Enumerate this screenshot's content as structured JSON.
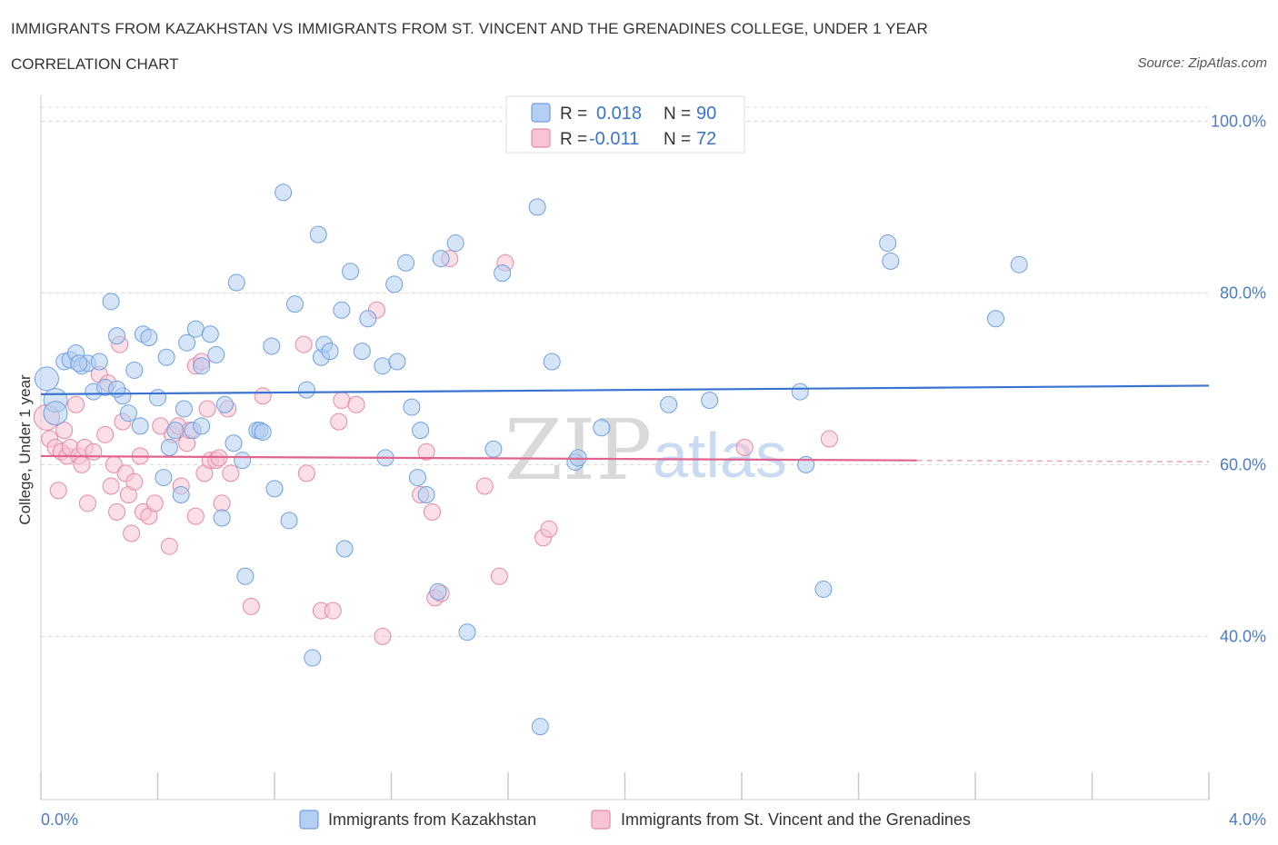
{
  "header": {
    "title_line1": "IMMIGRANTS FROM KAZAKHSTAN VS IMMIGRANTS FROM ST. VINCENT AND THE GRENADINES COLLEGE, UNDER 1 YEAR",
    "title_line2": "CORRELATION CHART",
    "source": "Source: ZipAtlas.com"
  },
  "watermark": {
    "zip": "ZIP",
    "atlas": "atlas"
  },
  "colors": {
    "blue": "#6fa0e0",
    "blue_fill": "#b5cef3",
    "blue_line": "#3a74d0",
    "pink": "#e888a6",
    "pink_fill": "#f6c4d4",
    "pink_line": "#e0648c",
    "axis_text": "#4a7cc9",
    "grid": "#d8d8d8"
  },
  "legend": {
    "rows": [
      {
        "r_label": "R =",
        "r_value": "0.018",
        "n_label": "N =",
        "n_value": "90"
      },
      {
        "r_label": "R =",
        "r_value": "-0.011",
        "n_label": "N =",
        "n_value": "72"
      }
    ]
  },
  "bottom_legend": {
    "items": [
      "Immigrants from Kazakhstan",
      "Immigrants from St. Vincent and the Grenadines"
    ]
  },
  "chart_data": {
    "type": "scatter",
    "xlabel": "",
    "ylabel": "College, Under 1 year",
    "xlim": [
      0,
      4
    ],
    "ylim": [
      21,
      103
    ],
    "x_tick_labels": [
      "0.0%",
      "4.0%"
    ],
    "y_ticks": [
      40,
      60,
      80,
      100
    ],
    "y_tick_labels": [
      "40.0%",
      "60.0%",
      "80.0%",
      "100.0%"
    ],
    "grid": true,
    "legend_position": "top-center",
    "series": [
      {
        "name": "Immigrants from Kazakhstan",
        "trend": {
          "x0": 0,
          "y0": 68.2,
          "x1": 4,
          "y1": 69.2
        },
        "points": [
          [
            0.02,
            70.0
          ],
          [
            0.05,
            67.5
          ],
          [
            0.05,
            66.0
          ],
          [
            0.08,
            72.0
          ],
          [
            0.1,
            72.2
          ],
          [
            0.12,
            73.0
          ],
          [
            0.14,
            71.5
          ],
          [
            0.16,
            71.8
          ],
          [
            0.18,
            68.5
          ],
          [
            0.2,
            72.0
          ],
          [
            0.22,
            69.0
          ],
          [
            0.24,
            79.0
          ],
          [
            0.26,
            75.0
          ],
          [
            0.28,
            68.0
          ],
          [
            0.3,
            66.0
          ],
          [
            0.32,
            71.0
          ],
          [
            0.34,
            64.5
          ],
          [
            0.35,
            75.2
          ],
          [
            0.37,
            74.8
          ],
          [
            0.4,
            67.8
          ],
          [
            0.42,
            58.5
          ],
          [
            0.43,
            72.5
          ],
          [
            0.44,
            62.0
          ],
          [
            0.46,
            64.0
          ],
          [
            0.48,
            56.5
          ],
          [
            0.49,
            66.5
          ],
          [
            0.5,
            74.2
          ],
          [
            0.52,
            64.0
          ],
          [
            0.53,
            75.8
          ],
          [
            0.55,
            71.5
          ],
          [
            0.58,
            75.2
          ],
          [
            0.6,
            72.8
          ],
          [
            0.62,
            53.8
          ],
          [
            0.63,
            67.0
          ],
          [
            0.66,
            62.5
          ],
          [
            0.67,
            81.2
          ],
          [
            0.69,
            60.5
          ],
          [
            0.7,
            47.0
          ],
          [
            0.74,
            64.0
          ],
          [
            0.75,
            64.0
          ],
          [
            0.76,
            63.8
          ],
          [
            0.79,
            73.8
          ],
          [
            0.8,
            57.2
          ],
          [
            0.83,
            91.7
          ],
          [
            0.85,
            53.5
          ],
          [
            0.87,
            78.7
          ],
          [
            0.91,
            68.7
          ],
          [
            0.93,
            37.5
          ],
          [
            0.95,
            86.8
          ],
          [
            0.96,
            72.5
          ],
          [
            0.97,
            74.0
          ],
          [
            0.99,
            73.2
          ],
          [
            1.03,
            78.0
          ],
          [
            1.04,
            50.2
          ],
          [
            1.06,
            82.5
          ],
          [
            1.1,
            73.2
          ],
          [
            1.12,
            77.0
          ],
          [
            1.17,
            71.5
          ],
          [
            1.18,
            60.8
          ],
          [
            1.21,
            81.0
          ],
          [
            1.22,
            72.0
          ],
          [
            1.25,
            83.5
          ],
          [
            1.27,
            66.7
          ],
          [
            1.29,
            58.5
          ],
          [
            1.3,
            64.0
          ],
          [
            1.32,
            56.5
          ],
          [
            1.36,
            45.2
          ],
          [
            1.37,
            84.0
          ],
          [
            1.42,
            85.8
          ],
          [
            1.46,
            40.5
          ],
          [
            1.55,
            61.8
          ],
          [
            1.58,
            82.3
          ],
          [
            1.7,
            90.0
          ],
          [
            1.71,
            29.5
          ],
          [
            1.75,
            72.0
          ],
          [
            1.83,
            60.3
          ],
          [
            1.84,
            60.8
          ],
          [
            1.92,
            64.3
          ],
          [
            2.15,
            67.0
          ],
          [
            2.29,
            67.5
          ],
          [
            2.6,
            68.5
          ],
          [
            2.62,
            60.0
          ],
          [
            2.68,
            45.5
          ],
          [
            2.9,
            85.8
          ],
          [
            2.91,
            83.7
          ],
          [
            3.27,
            77.0
          ],
          [
            3.35,
            83.3
          ],
          [
            0.13,
            71.8
          ],
          [
            0.26,
            68.8
          ],
          [
            0.55,
            64.5
          ]
        ]
      },
      {
        "name": "Immigrants from St. Vincent and the Grenadines",
        "trend": {
          "x0": 0,
          "y0": 61.0,
          "x1": 3.0,
          "y1": 60.5,
          "dash_to": 4.0
        },
        "points": [
          [
            0.02,
            65.5
          ],
          [
            0.03,
            63.0
          ],
          [
            0.05,
            62.0
          ],
          [
            0.06,
            57.0
          ],
          [
            0.07,
            61.5
          ],
          [
            0.08,
            64.0
          ],
          [
            0.09,
            61.0
          ],
          [
            0.1,
            62.0
          ],
          [
            0.12,
            67.0
          ],
          [
            0.13,
            61.0
          ],
          [
            0.14,
            60.0
          ],
          [
            0.15,
            62.0
          ],
          [
            0.16,
            55.5
          ],
          [
            0.18,
            61.5
          ],
          [
            0.2,
            70.5
          ],
          [
            0.22,
            63.5
          ],
          [
            0.23,
            69.5
          ],
          [
            0.24,
            57.5
          ],
          [
            0.25,
            60.0
          ],
          [
            0.26,
            54.5
          ],
          [
            0.27,
            74.0
          ],
          [
            0.28,
            65.0
          ],
          [
            0.29,
            59.0
          ],
          [
            0.3,
            56.5
          ],
          [
            0.31,
            52.0
          ],
          [
            0.32,
            58.0
          ],
          [
            0.34,
            61.0
          ],
          [
            0.35,
            54.5
          ],
          [
            0.37,
            54.0
          ],
          [
            0.39,
            55.5
          ],
          [
            0.41,
            64.5
          ],
          [
            0.44,
            50.5
          ],
          [
            0.45,
            63.5
          ],
          [
            0.47,
            64.5
          ],
          [
            0.48,
            57.5
          ],
          [
            0.5,
            62.5
          ],
          [
            0.51,
            64.0
          ],
          [
            0.53,
            71.5
          ],
          [
            0.53,
            54.0
          ],
          [
            0.55,
            72.0
          ],
          [
            0.56,
            59.0
          ],
          [
            0.57,
            66.5
          ],
          [
            0.58,
            60.5
          ],
          [
            0.6,
            60.5
          ],
          [
            0.61,
            60.8
          ],
          [
            0.62,
            55.5
          ],
          [
            0.64,
            66.5
          ],
          [
            0.65,
            59.0
          ],
          [
            0.72,
            43.5
          ],
          [
            0.76,
            68.0
          ],
          [
            0.9,
            74.0
          ],
          [
            0.91,
            59.0
          ],
          [
            0.96,
            43.0
          ],
          [
            1.0,
            43.0
          ],
          [
            1.02,
            65.0
          ],
          [
            1.03,
            67.5
          ],
          [
            1.08,
            67.0
          ],
          [
            1.15,
            78.0
          ],
          [
            1.17,
            40.0
          ],
          [
            1.3,
            56.5
          ],
          [
            1.32,
            61.5
          ],
          [
            1.34,
            54.5
          ],
          [
            1.35,
            44.5
          ],
          [
            1.37,
            45.0
          ],
          [
            1.4,
            84.0
          ],
          [
            1.52,
            57.5
          ],
          [
            1.57,
            47.0
          ],
          [
            1.59,
            83.5
          ],
          [
            1.72,
            51.5
          ],
          [
            1.74,
            52.5
          ],
          [
            2.41,
            62.0
          ],
          [
            2.7,
            63.0
          ]
        ]
      }
    ]
  }
}
